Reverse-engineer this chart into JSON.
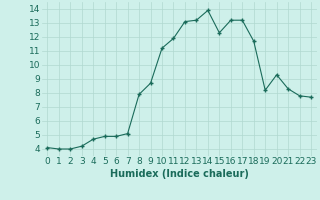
{
  "x": [
    0,
    1,
    2,
    3,
    4,
    5,
    6,
    7,
    8,
    9,
    10,
    11,
    12,
    13,
    14,
    15,
    16,
    17,
    18,
    19,
    20,
    21,
    22,
    23
  ],
  "y": [
    4.1,
    4.0,
    4.0,
    4.2,
    4.7,
    4.9,
    4.9,
    5.1,
    7.9,
    8.7,
    11.2,
    11.9,
    13.1,
    13.2,
    13.9,
    12.3,
    13.2,
    13.2,
    11.7,
    8.2,
    9.3,
    8.3,
    7.8,
    7.7
  ],
  "xlabel": "Humidex (Indice chaleur)",
  "xlim": [
    -0.5,
    23.5
  ],
  "ylim": [
    3.5,
    14.5
  ],
  "yticks": [
    4,
    5,
    6,
    7,
    8,
    9,
    10,
    11,
    12,
    13,
    14
  ],
  "xtick_labels": [
    "0",
    "1",
    "2",
    "3",
    "4",
    "5",
    "6",
    "7",
    "8",
    "9",
    "10",
    "11",
    "12",
    "13",
    "14",
    "15",
    "16",
    "17",
    "18",
    "19",
    "20",
    "21",
    "22",
    "23"
  ],
  "line_color": "#1a6b5a",
  "marker_color": "#1a6b5a",
  "bg_color": "#cef0ea",
  "grid_color": "#b0d8d0",
  "label_fontsize": 7,
  "tick_fontsize": 6.5
}
